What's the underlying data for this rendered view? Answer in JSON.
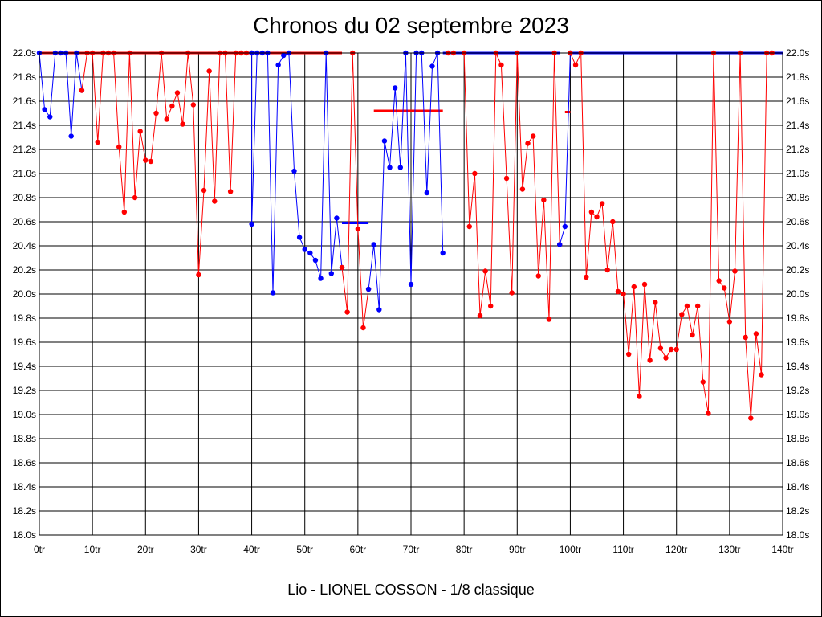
{
  "chart_data": {
    "type": "line",
    "title": "Chronos du 02 septembre 2023",
    "footer": "Lio - LIONEL COSSON - 1/8 classique",
    "xlim": [
      0,
      140
    ],
    "ylim": [
      18.0,
      22.0
    ],
    "x_ticks": [
      0,
      10,
      20,
      30,
      40,
      50,
      60,
      70,
      80,
      90,
      100,
      110,
      120,
      130,
      140
    ],
    "x_tick_labels": [
      "0tr",
      "10tr",
      "20tr",
      "30tr",
      "40tr",
      "50tr",
      "60tr",
      "70tr",
      "80tr",
      "90tr",
      "100tr",
      "110tr",
      "120tr",
      "130tr",
      "140tr"
    ],
    "y_ticks": [
      18.0,
      18.2,
      18.4,
      18.6,
      18.8,
      19.0,
      19.2,
      19.4,
      19.6,
      19.8,
      20.0,
      20.2,
      20.4,
      20.6,
      20.8,
      21.0,
      21.2,
      21.4,
      21.6,
      21.8,
      22.0
    ],
    "y_tick_labels": [
      "18.0s",
      "18.2s",
      "18.4s",
      "18.6s",
      "18.8s",
      "19.0s",
      "19.2s",
      "19.4s",
      "19.6s",
      "19.8s",
      "20.0s",
      "20.2s",
      "20.4s",
      "20.6s",
      "20.8s",
      "21.0s",
      "21.2s",
      "21.4s",
      "21.6s",
      "21.8s",
      "22.0s"
    ],
    "grid": true,
    "colors": {
      "blue": "#0000ff",
      "red": "#ff0000"
    },
    "segments": [
      {
        "color": "blue",
        "points": [
          [
            0,
            22.0
          ],
          [
            1,
            21.53
          ],
          [
            2,
            21.47
          ],
          [
            3,
            22.0
          ],
          [
            4,
            22.0
          ],
          [
            5,
            22.0
          ],
          [
            6,
            21.31
          ],
          [
            7,
            22.0
          ],
          [
            8,
            21.69
          ]
        ]
      },
      {
        "color": "red",
        "points": [
          [
            8,
            21.69
          ],
          [
            9,
            22.0
          ],
          [
            10,
            22.0
          ],
          [
            11,
            21.26
          ],
          [
            12,
            22.0
          ],
          [
            13,
            22.0
          ],
          [
            14,
            22.0
          ],
          [
            15,
            21.22
          ],
          [
            16,
            20.68
          ],
          [
            17,
            22.0
          ],
          [
            18,
            20.8
          ],
          [
            19,
            21.35
          ],
          [
            20,
            21.11
          ],
          [
            21,
            21.1
          ],
          [
            22,
            21.5
          ],
          [
            23,
            22.0
          ],
          [
            24,
            21.45
          ],
          [
            25,
            21.56
          ],
          [
            26,
            21.67
          ],
          [
            27,
            21.41
          ],
          [
            28,
            22.0
          ],
          [
            29,
            21.57
          ],
          [
            30,
            20.16
          ],
          [
            31,
            20.86
          ],
          [
            32,
            21.85
          ],
          [
            33,
            20.77
          ],
          [
            34,
            22.0
          ],
          [
            35,
            22.0
          ],
          [
            36,
            20.85
          ],
          [
            37,
            22.0
          ],
          [
            38,
            22.0
          ],
          [
            39,
            22.0
          ],
          [
            40,
            22.0
          ]
        ]
      },
      {
        "color": "blue",
        "points": [
          [
            40,
            22.0
          ],
          [
            40,
            20.58
          ],
          [
            41,
            22.0
          ],
          [
            42,
            22.0
          ],
          [
            43,
            22.0
          ],
          [
            44,
            20.01
          ],
          [
            45,
            21.9
          ],
          [
            46,
            21.98
          ],
          [
            47,
            22.0
          ],
          [
            48,
            21.02
          ],
          [
            49,
            20.47
          ],
          [
            50,
            20.37
          ],
          [
            51,
            20.34
          ],
          [
            52,
            20.28
          ],
          [
            53,
            20.13
          ],
          [
            54,
            22.0
          ],
          [
            55,
            20.17
          ],
          [
            56,
            20.63
          ],
          [
            57,
            20.22
          ]
        ]
      },
      {
        "color": "red",
        "points": [
          [
            57,
            20.22
          ],
          [
            58,
            19.85
          ],
          [
            59,
            22.0
          ],
          [
            60,
            20.54
          ],
          [
            61,
            19.72
          ],
          [
            62,
            20.04
          ]
        ]
      },
      {
        "color": "blue",
        "points": [
          [
            62,
            20.04
          ],
          [
            63,
            20.41
          ],
          [
            64,
            19.87
          ],
          [
            65,
            21.27
          ],
          [
            66,
            21.05
          ],
          [
            67,
            21.71
          ],
          [
            68,
            21.05
          ],
          [
            69,
            22.0
          ],
          [
            70,
            20.08
          ],
          [
            71,
            22.0
          ],
          [
            72,
            22.0
          ],
          [
            73,
            20.84
          ],
          [
            74,
            21.89
          ],
          [
            75,
            22.0
          ],
          [
            76,
            20.34
          ]
        ]
      },
      {
        "color": "red",
        "points": [
          [
            77,
            22.0
          ],
          [
            78,
            22.0
          ],
          [
            80,
            22.0
          ],
          [
            81,
            20.56
          ],
          [
            82,
            21.0
          ],
          [
            83,
            19.82
          ],
          [
            84,
            20.19
          ],
          [
            85,
            19.9
          ],
          [
            86,
            22.0
          ],
          [
            87,
            21.9
          ],
          [
            88,
            20.96
          ],
          [
            89,
            20.01
          ],
          [
            90,
            22.0
          ],
          [
            91,
            20.87
          ],
          [
            92,
            21.25
          ],
          [
            93,
            21.31
          ],
          [
            94,
            20.15
          ],
          [
            95,
            20.78
          ],
          [
            96,
            19.79
          ],
          [
            97,
            22.0
          ],
          [
            98,
            20.41
          ]
        ]
      },
      {
        "color": "blue",
        "points": [
          [
            98,
            20.41
          ],
          [
            99,
            20.56
          ],
          [
            100,
            22.0
          ]
        ]
      },
      {
        "color": "red",
        "points": [
          [
            100,
            22.0
          ],
          [
            101,
            21.9
          ],
          [
            102,
            22.0
          ],
          [
            103,
            20.14
          ],
          [
            104,
            20.68
          ],
          [
            105,
            20.64
          ],
          [
            106,
            20.75
          ],
          [
            107,
            20.2
          ],
          [
            108,
            20.6
          ],
          [
            109,
            20.02
          ],
          [
            110,
            20.0
          ],
          [
            111,
            19.5
          ],
          [
            112,
            20.06
          ],
          [
            113,
            19.15
          ],
          [
            114,
            20.08
          ],
          [
            115,
            19.45
          ],
          [
            116,
            19.93
          ],
          [
            117,
            19.55
          ],
          [
            118,
            19.47
          ],
          [
            119,
            19.54
          ],
          [
            120,
            19.54
          ],
          [
            121,
            19.83
          ],
          [
            122,
            19.9
          ],
          [
            123,
            19.66
          ],
          [
            124,
            19.9
          ],
          [
            125,
            19.27
          ],
          [
            126,
            19.01
          ],
          [
            127,
            22.0
          ],
          [
            128,
            20.11
          ],
          [
            129,
            20.05
          ],
          [
            130,
            19.77
          ],
          [
            131,
            20.19
          ],
          [
            132,
            22.0
          ],
          [
            133,
            19.64
          ],
          [
            134,
            18.97
          ],
          [
            135,
            19.67
          ],
          [
            136,
            19.33
          ],
          [
            137,
            22.0
          ],
          [
            138,
            22.0
          ]
        ]
      }
    ],
    "reference_lines": [
      {
        "color": "red",
        "x_from": 0,
        "x_to": 57,
        "y": 22.0
      },
      {
        "color": "blue",
        "x_from": 57,
        "x_to": 62,
        "y": 20.59
      },
      {
        "color": "red",
        "x_from": 63,
        "x_to": 76,
        "y": 21.52
      },
      {
        "color": "blue",
        "x_from": 76,
        "x_to": 98,
        "y": 22.0
      },
      {
        "color": "red",
        "x_from": 99,
        "x_to": 100,
        "y": 21.51
      },
      {
        "color": "blue",
        "x_from": 100,
        "x_to": 140,
        "y": 22.0
      }
    ]
  }
}
